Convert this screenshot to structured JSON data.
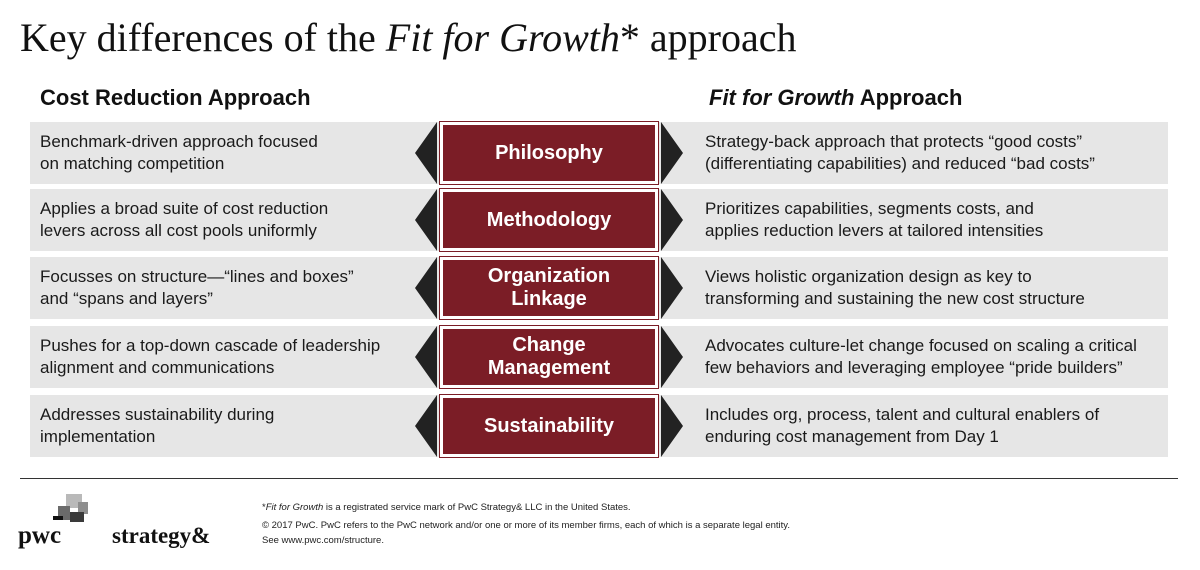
{
  "title": {
    "prefix": "Key differences of the ",
    "italic": "Fit for Growth",
    "suffix": "* approach"
  },
  "columns": {
    "left_heading": "Cost Reduction Approach",
    "right_heading_italic": "Fit for Growth",
    "right_heading_suffix": " Approach"
  },
  "rows": [
    {
      "label": "Philosophy",
      "left": "Benchmark-driven approach focused\non matching competition",
      "right": "Strategy-back approach that protects “good costs”\n(differentiating capabilities) and reduced “bad costs”"
    },
    {
      "label": "Methodology",
      "left": "Applies a broad suite of cost reduction\nlevers across all cost pools uniformly",
      "right": "Prioritizes capabilities, segments costs, and\napplies reduction levers at tailored intensities"
    },
    {
      "label": "Organization\nLinkage",
      "left": "Focusses on structure—“lines and boxes”\nand “spans and layers”",
      "right": "Views holistic organization design as key to\ntransforming and sustaining the new cost structure"
    },
    {
      "label": "Change\nManagement",
      "left": "Pushes for a top-down cascade of leadership\nalignment and communications",
      "right": "Advocates culture-let change focused on scaling a critical\nfew behaviors and leveraging employee “pride builders”"
    },
    {
      "label": "Sustainability",
      "left": "Addresses sustainability during\nimplementation",
      "right": "Includes org, process, talent and cultural enablers of\nenduring cost management from Day 1"
    }
  ],
  "footer": {
    "note_italic": "Fit for Growth",
    "note_prefix": "*",
    "note_rest": " is a registrated service mark of PwC Strategy& LLC in the United States.",
    "copyright": "© 2017 PwC. PwC refers to the PwC network and/or one or more of its member firms, each of which is a separate legal entity.",
    "see": "See www.pwc.com/structure.",
    "logo_pwc": "pwc",
    "logo_strategy": "strategy&"
  },
  "colors": {
    "label_box": "#7b1d26",
    "row_band": "#e6e6e6",
    "arrow": "#222222"
  }
}
